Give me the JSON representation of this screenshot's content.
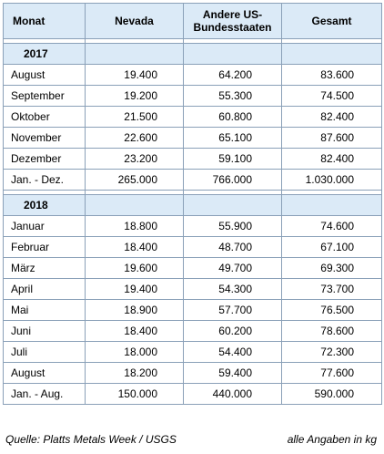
{
  "header": [
    "Monat",
    "Nevada",
    "Andere US-\nBundesstaaten",
    "Gesamt"
  ],
  "header_nevada": "Nevada",
  "header_andere_1": "Andere US-",
  "header_andere_2": "Bundesstaaten",
  "header_gesamt": "Gesamt",
  "header_monat": "Monat",
  "sections": [
    {
      "year": "2017",
      "rows": [
        [
          "August",
          "19.400",
          "64.200",
          "83.600"
        ],
        [
          "September",
          "19.200",
          "55.300",
          "74.500"
        ],
        [
          "Oktober",
          "21.500",
          "60.800",
          "82.400"
        ],
        [
          "November",
          "22.600",
          "65.100",
          "87.600"
        ],
        [
          "Dezember",
          "23.200",
          "59.100",
          "82.400"
        ],
        [
          "Jan. - Dez.",
          "265.000",
          "766.000",
          "1.030.000"
        ]
      ]
    },
    {
      "year": "2018",
      "rows": [
        [
          "Januar",
          "18.800",
          "55.900",
          "74.600"
        ],
        [
          "Februar",
          "18.400",
          "48.700",
          "67.100"
        ],
        [
          "März",
          "19.600",
          "49.700",
          "69.300"
        ],
        [
          "April",
          "19.400",
          "54.300",
          "73.700"
        ],
        [
          "Mai",
          "18.900",
          "57.700",
          "76.500"
        ],
        [
          "Juni",
          "18.400",
          "60.200",
          "78.600"
        ],
        [
          "Juli",
          "18.000",
          "54.400",
          "72.300"
        ],
        [
          "August",
          "18.200",
          "59.400",
          "77.600"
        ],
        [
          "Jan. - Aug.",
          "150.000",
          "440.000",
          "590.000"
        ]
      ]
    }
  ],
  "footer": {
    "source": "Quelle: Platts Metals Week / USGS",
    "note": "alle Angaben in kg"
  }
}
